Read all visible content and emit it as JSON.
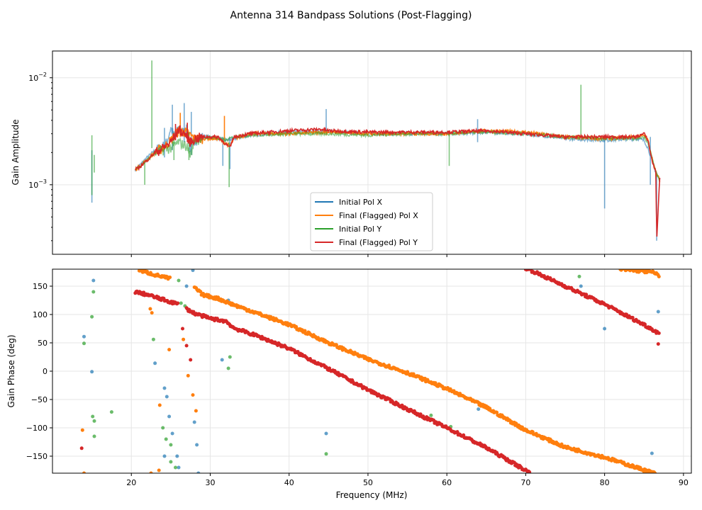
{
  "figure_title": "Antenna 314 Bandpass Solutions (Post-Flagging)",
  "colors": {
    "pol_x_initial": "#1f77b4",
    "pol_x_final": "#ff7f0e",
    "pol_y_initial": "#2ca02c",
    "pol_y_final": "#d62728",
    "grid": "#e6e6e6",
    "axis": "#000000"
  },
  "chart_data": [
    {
      "id": "amplitude",
      "type": "line",
      "title": "",
      "xlabel": "",
      "ylabel": "Gain Amplitude",
      "yscale": "log",
      "xlim": [
        10,
        91
      ],
      "ylim_exp": [
        -3.65,
        -1.75
      ],
      "yticks": [
        {
          "exp": -3,
          "label_base": "10",
          "label_exp": "−3"
        },
        {
          "exp": -2,
          "label_base": "10",
          "label_exp": "−2"
        }
      ],
      "xticks": [
        20,
        30,
        40,
        50,
        60,
        70,
        80,
        90
      ],
      "grid": true,
      "legend": {
        "position": "lower-center",
        "entries": [
          {
            "label": "Initial Pol X",
            "color_key": "pol_x_initial"
          },
          {
            "label": "Final (Flagged) Pol X",
            "color_key": "pol_x_final"
          },
          {
            "label": "Initial Pol Y",
            "color_key": "pol_y_initial"
          },
          {
            "label": "Final (Flagged) Pol Y",
            "color_key": "pol_y_final"
          }
        ]
      },
      "series": [
        {
          "name": "Initial Pol X",
          "color_key": "pol_x_initial",
          "x": [
            20.5,
            22,
            23,
            24,
            24.5,
            25,
            25.5,
            26,
            26.5,
            27,
            27.5,
            28,
            29,
            30,
            31,
            32,
            33,
            35,
            40,
            45,
            50,
            55,
            60,
            65,
            70,
            75,
            80,
            84,
            85,
            85.5,
            86,
            86.5,
            87
          ],
          "y": [
            0.00138,
            0.0018,
            0.0021,
            0.0023,
            0.0025,
            0.0034,
            0.0028,
            0.0034,
            0.0031,
            0.0033,
            0.0021,
            0.0026,
            0.0028,
            0.0028,
            0.0027,
            0.0026,
            0.0027,
            0.0029,
            0.0031,
            0.00315,
            0.003,
            0.003,
            0.003,
            0.0031,
            0.003,
            0.0027,
            0.0026,
            0.0027,
            0.0026,
            0.0022,
            0.0017,
            0.0013,
            0.0011
          ],
          "spikes": [
            [
              15,
              0.00068,
              0.0021
            ],
            [
              24.2,
              0.0018,
              0.0034
            ],
            [
              25.2,
              0.0021,
              0.0056
            ],
            [
              26.7,
              0.0025,
              0.0058
            ],
            [
              27.6,
              0.0019,
              0.0048
            ],
            [
              31.6,
              0.0015,
              0.0028
            ],
            [
              32.5,
              0.0014,
              0.0028
            ],
            [
              44.7,
              0.0031,
              0.0051
            ],
            [
              63.9,
              0.0025,
              0.0041
            ],
            [
              80,
              0.0006,
              0.0027
            ],
            [
              85.8,
              0.001,
              0.0028
            ],
            [
              86.6,
              0.0003,
              0.0013
            ]
          ]
        },
        {
          "name": "Final (Flagged) Pol X",
          "color_key": "pol_x_final",
          "x": [
            20.5,
            22,
            23,
            24,
            25,
            26,
            27,
            28,
            29,
            30,
            31,
            32.5,
            33,
            35,
            40,
            45,
            50,
            55,
            60,
            65,
            70,
            75,
            80,
            84,
            85,
            85.5,
            86,
            86.5,
            87
          ],
          "y": [
            0.00138,
            0.0017,
            0.002,
            0.0022,
            0.0026,
            0.0032,
            0.0031,
            0.0027,
            0.0027,
            0.0027,
            0.0027,
            0.0023,
            0.0027,
            0.003,
            0.003,
            0.0031,
            0.003,
            0.003,
            0.003,
            0.0032,
            0.0031,
            0.0028,
            0.0027,
            0.0028,
            0.0029,
            0.0026,
            0.0018,
            0.0013,
            0.0011
          ],
          "spikes": [
            [
              31.8,
              0.0026,
              0.0044
            ],
            [
              26.2,
              0.0028,
              0.0047
            ]
          ]
        },
        {
          "name": "Initial Pol Y",
          "color_key": "pol_y_initial",
          "x": [
            20.5,
            22,
            23,
            24,
            25,
            26,
            27,
            27.5,
            28,
            29,
            30,
            31,
            32,
            33,
            35,
            40,
            45,
            50,
            55,
            60,
            65,
            70,
            75,
            80,
            84,
            85,
            85.5,
            86,
            86.5,
            87
          ],
          "y": [
            0.00138,
            0.0017,
            0.002,
            0.0021,
            0.0022,
            0.0025,
            0.0023,
            0.0019,
            0.0026,
            0.0027,
            0.0028,
            0.0027,
            0.0026,
            0.0028,
            0.0029,
            0.003,
            0.003,
            0.0029,
            0.003,
            0.003,
            0.0031,
            0.003,
            0.0028,
            0.0027,
            0.0027,
            0.0028,
            0.0025,
            0.0018,
            0.0013,
            0.0011
          ],
          "spikes": [
            [
              15,
              0.0008,
              0.0029
            ],
            [
              15.3,
              0.0013,
              0.0019
            ],
            [
              21.7,
              0.001,
              0.0016
            ],
            [
              22.6,
              0.0022,
              0.0145
            ],
            [
              25.4,
              0.0017,
              0.0031
            ],
            [
              27.3,
              0.0017,
              0.0031
            ],
            [
              32.4,
              0.00095,
              0.0025
            ],
            [
              60.3,
              0.0015,
              0.0029
            ],
            [
              77,
              0.0028,
              0.0086
            ]
          ]
        },
        {
          "name": "Final (Flagged) Pol Y",
          "color_key": "pol_y_final",
          "x": [
            20.5,
            21,
            22,
            23,
            24,
            25,
            26,
            27,
            27.5,
            28,
            29,
            30,
            31,
            32,
            32.5,
            33,
            35,
            40,
            44,
            45,
            50,
            55,
            60,
            65,
            70,
            75,
            80,
            84,
            85,
            85.5,
            86,
            86.5,
            86.6,
            87
          ],
          "y": [
            0.00138,
            0.00145,
            0.0017,
            0.002,
            0.0022,
            0.0025,
            0.0033,
            0.0029,
            0.0025,
            0.0027,
            0.0028,
            0.0028,
            0.0028,
            0.0024,
            0.0022,
            0.0028,
            0.003,
            0.0032,
            0.0033,
            0.0032,
            0.0031,
            0.0031,
            0.0031,
            0.0032,
            0.003,
            0.0028,
            0.0028,
            0.0028,
            0.003,
            0.0026,
            0.0017,
            0.0013,
            0.0003,
            0.0012
          ],
          "spikes": [
            [
              25.6,
              0.0026,
              0.0037
            ],
            [
              27.1,
              0.0025,
              0.0038
            ]
          ]
        }
      ]
    },
    {
      "id": "phase",
      "type": "scatter",
      "title": "",
      "xlabel": "Frequency (MHz)",
      "ylabel": "Gain Phase (deg)",
      "xlim": [
        10,
        91
      ],
      "ylim": [
        -180,
        180
      ],
      "xticks": [
        20,
        30,
        40,
        50,
        60,
        70,
        80,
        90
      ],
      "yticks": [
        -150,
        -100,
        -50,
        0,
        50,
        100,
        150
      ],
      "grid": true,
      "series": [
        {
          "name": "Final (Flagged) Pol X",
          "color_key": "pol_x_final",
          "segments": [
            [
              [
                21,
                178
              ],
              [
                23,
                170
              ],
              [
                25,
                163
              ]
            ],
            [
              [
                28,
                148
              ],
              [
                29,
                135
              ],
              [
                31,
                128
              ],
              [
                33,
                117
              ],
              [
                40,
                82
              ],
              [
                45,
                50
              ],
              [
                50,
                21
              ],
              [
                55,
                -3
              ],
              [
                60,
                -31
              ],
              [
                65,
                -64
              ],
              [
                70,
                -104
              ],
              [
                75,
                -134
              ],
              [
                80,
                -152
              ],
              [
                86.5,
                -181
              ]
            ],
            [
              [
                82,
                180
              ],
              [
                86,
                175
              ],
              [
                87,
                168
              ]
            ]
          ],
          "scatter": [
            [
              13.8,
              -104
            ],
            [
              22.5,
              -180
            ],
            [
              23.5,
              -175
            ],
            [
              24.8,
              38
            ],
            [
              26.6,
              56
            ],
            [
              27.2,
              -8
            ],
            [
              27.8,
              -42
            ],
            [
              28.2,
              -70
            ],
            [
              23.6,
              -60
            ],
            [
              22.4,
              110
            ],
            [
              22.6,
              103
            ],
            [
              14.0,
              -180
            ]
          ]
        },
        {
          "name": "Final (Flagged) Pol Y",
          "color_key": "pol_y_final",
          "segments": [
            [
              [
                20.5,
                140
              ],
              [
                22,
                135
              ],
              [
                25,
                122
              ],
              [
                26,
                118
              ]
            ],
            [
              [
                27,
                110
              ],
              [
                28,
                102
              ],
              [
                30,
                93
              ],
              [
                32,
                88
              ],
              [
                33,
                76
              ],
              [
                36,
                62
              ],
              [
                40,
                40
              ],
              [
                45,
                4
              ],
              [
                50,
                -33
              ],
              [
                55,
                -67
              ],
              [
                60,
                -100
              ],
              [
                65,
                -135
              ],
              [
                70,
                -175
              ],
              [
                70.6,
                -180
              ]
            ],
            [
              [
                70,
                182
              ],
              [
                75,
                150
              ],
              [
                80,
                118
              ],
              [
                85,
                82
              ],
              [
                87,
                66
              ]
            ]
          ],
          "scatter": [
            [
              13.7,
              -136
            ],
            [
              86.8,
              48
            ],
            [
              26.5,
              75
            ],
            [
              27,
              45
            ],
            [
              27.5,
              20
            ]
          ]
        },
        {
          "name": "Initial Pol X",
          "color_key": "pol_x_initial",
          "scatter": [
            [
              14,
              61
            ],
            [
              15.2,
              160
            ],
            [
              15,
              -1
            ],
            [
              23,
              14
            ],
            [
              24.2,
              -30
            ],
            [
              24.5,
              -45
            ],
            [
              24.8,
              -80
            ],
            [
              25.2,
              -110
            ],
            [
              25.8,
              -150
            ],
            [
              26,
              -170
            ],
            [
              27,
              150
            ],
            [
              27.8,
              178
            ],
            [
              28,
              -90
            ],
            [
              28.3,
              -130
            ],
            [
              28.5,
              -180
            ],
            [
              31.5,
              20
            ],
            [
              32.3,
              125
            ],
            [
              44.7,
              -110
            ],
            [
              64,
              -67
            ],
            [
              77,
              150
            ],
            [
              80,
              75
            ],
            [
              86,
              -145
            ],
            [
              86.8,
              105
            ],
            [
              24.2,
              -150
            ]
          ]
        },
        {
          "name": "Initial Pol Y",
          "color_key": "pol_y_initial",
          "scatter": [
            [
              14,
              49
            ],
            [
              15,
              96
            ],
            [
              15.2,
              140
            ],
            [
              15.1,
              -80
            ],
            [
              15.3,
              -88
            ],
            [
              15.3,
              -115
            ],
            [
              17.5,
              -72
            ],
            [
              22.8,
              56
            ],
            [
              24,
              -100
            ],
            [
              24.4,
              -120
            ],
            [
              25,
              -130
            ],
            [
              25,
              -160
            ],
            [
              25.6,
              -170
            ],
            [
              26,
              160
            ],
            [
              26.3,
              120
            ],
            [
              26.8,
              115
            ],
            [
              32.3,
              5
            ],
            [
              32.5,
              25
            ],
            [
              44.7,
              -146
            ],
            [
              76.8,
              167
            ],
            [
              60.5,
              -98
            ],
            [
              58,
              -78
            ]
          ]
        }
      ]
    }
  ]
}
